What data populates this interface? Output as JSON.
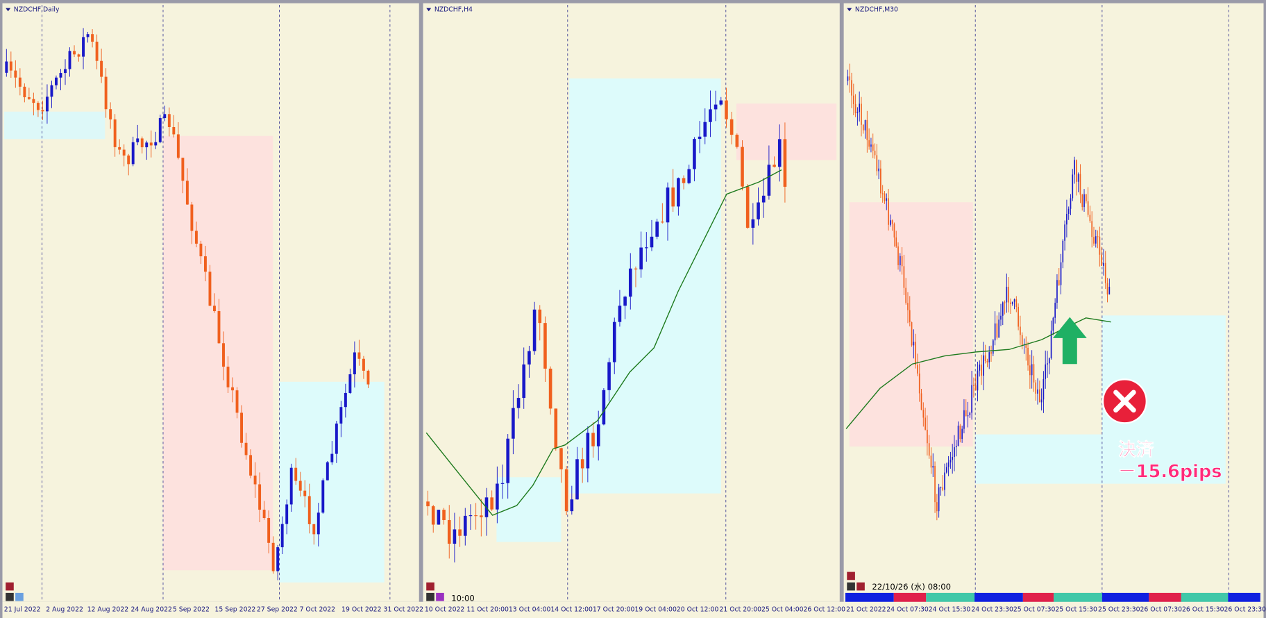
{
  "panels": [
    {
      "title": "NZDCHF,Daily",
      "x_labels": [
        "21 Jul 2022",
        "2 Aug 2022",
        "12 Aug 2022",
        "24 Aug 2022",
        "5 Sep 2022",
        "15 Sep 2022",
        "27 Sep 2022",
        "7 Oct 2022",
        "19 Oct 2022",
        "31 Oct 2022"
      ]
    },
    {
      "title": "NZDCHF,H4",
      "time_label": "10:00",
      "x_labels": [
        "10 Oct 2022",
        "11 Oct 20:00",
        "13 Oct 04:00",
        "14 Oct 12:00",
        "17 Oct 20:00",
        "19 Oct 04:00",
        "20 Oct 12:00",
        "21 Oct 20:00",
        "25 Oct 04:00",
        "26 Oct 12:00"
      ]
    },
    {
      "title": "NZDCHF,M30",
      "time_label": "22/10/26 (水) 08:00",
      "x_labels": [
        "21 Oct 2022",
        "24 Oct 07:30",
        "24 Oct 15:30",
        "24 Oct 23:30",
        "25 Oct 07:30",
        "25 Oct 15:30",
        "25 Oct 23:30",
        "26 Oct 07:30",
        "26 Oct 15:30",
        "26 Oct 23:30"
      ]
    }
  ],
  "annotation": {
    "lines": [
      "決済",
      "ー15.6pips"
    ]
  }
}
